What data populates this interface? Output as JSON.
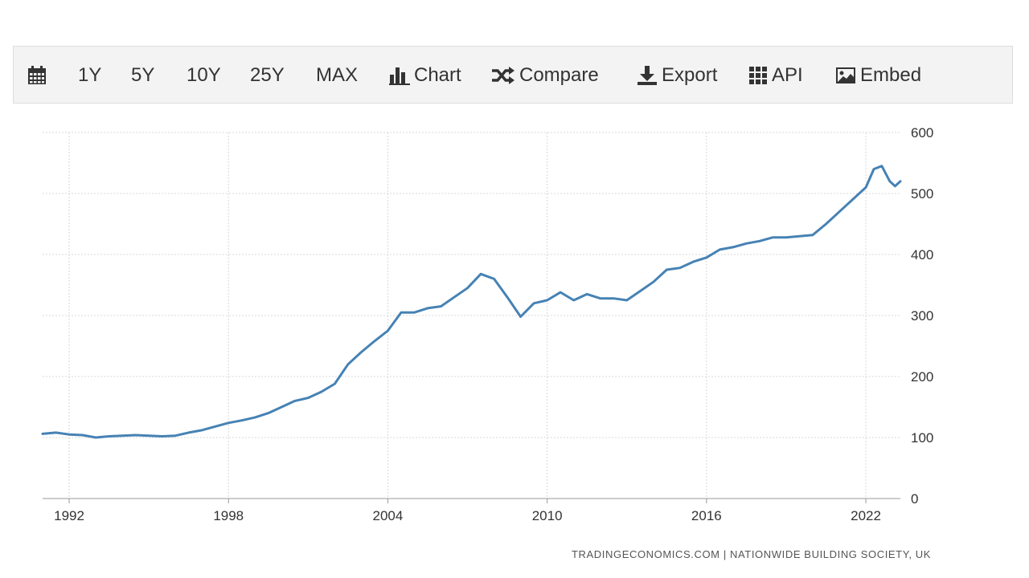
{
  "toolbar": {
    "calendar_icon": "calendar-icon",
    "range_1y": "1Y",
    "range_5y": "5Y",
    "range_10y": "10Y",
    "range_25y": "25Y",
    "range_max": "MAX",
    "chart_label": "Chart",
    "compare_label": "Compare",
    "export_label": "Export",
    "api_label": "API",
    "embed_label": "Embed"
  },
  "source_text": "TRADINGECONOMICS.COM | NATIONWIDE BUILDING SOCIETY, UK",
  "colors": {
    "line": "#4682b4",
    "grid": "#d8d8d8",
    "toolbar_bg": "#f3f3f3",
    "text": "#333333"
  },
  "chart_data": {
    "type": "line",
    "title": "",
    "xlabel": "",
    "ylabel": "",
    "ylim": [
      0,
      600
    ],
    "y_ticks": [
      0,
      100,
      200,
      300,
      400,
      500,
      600
    ],
    "xlim": [
      1991.0,
      2023.3
    ],
    "x_ticks": [
      1992,
      1998,
      2004,
      2010,
      2016,
      2022
    ],
    "y_axis_position": "right",
    "grid": true,
    "legend": "none",
    "series": [
      {
        "x": [
          1991.0,
          1991.5,
          1992.0,
          1992.5,
          1993.0,
          1993.5,
          1994.0,
          1994.5,
          1995.0,
          1995.5,
          1996.0,
          1996.5,
          1997.0,
          1997.5,
          1998.0,
          1998.5,
          1999.0,
          1999.5,
          2000.0,
          2000.5,
          2001.0,
          2001.5,
          2002.0,
          2002.5,
          2003.0,
          2003.5,
          2004.0,
          2004.5,
          2005.0,
          2005.5,
          2006.0,
          2006.5,
          2007.0,
          2007.5,
          2008.0,
          2008.5,
          2009.0,
          2009.5,
          2010.0,
          2010.5,
          2011.0,
          2011.5,
          2012.0,
          2012.5,
          2013.0,
          2013.5,
          2014.0,
          2014.5,
          2015.0,
          2015.5,
          2016.0,
          2016.5,
          2017.0,
          2017.5,
          2018.0,
          2018.5,
          2019.0,
          2019.5,
          2020.0,
          2020.5,
          2021.0,
          2021.5,
          2022.0,
          2022.3,
          2022.6,
          2022.9,
          2023.1,
          2023.3
        ],
        "y": [
          106,
          108,
          105,
          104,
          100,
          102,
          103,
          104,
          103,
          102,
          103,
          108,
          112,
          118,
          124,
          128,
          133,
          140,
          150,
          160,
          165,
          175,
          188,
          220,
          240,
          258,
          275,
          305,
          305,
          312,
          315,
          330,
          345,
          368,
          360,
          330,
          298,
          320,
          325,
          338,
          325,
          335,
          328,
          328,
          325,
          340,
          355,
          375,
          378,
          388,
          395,
          408,
          412,
          418,
          422,
          428,
          428,
          430,
          432,
          450,
          470,
          490,
          510,
          540,
          545,
          520,
          512,
          520
        ]
      }
    ]
  }
}
